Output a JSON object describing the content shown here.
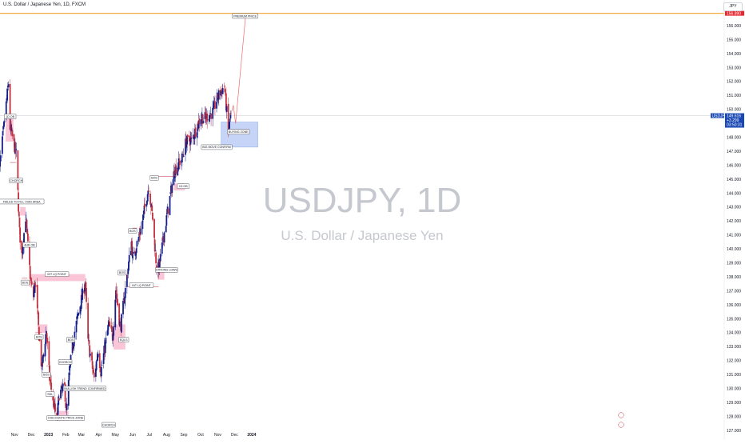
{
  "header": {
    "title": "U.S. Dollar / Japanese Yen, 1D, FXCM",
    "currency": "JPY"
  },
  "watermark": {
    "symbol": "USDJPY, 1D",
    "description": "U.S. Dollar / Japanese Yen"
  },
  "price_tag": {
    "symbol": "USDJPY",
    "price": "149.616",
    "change": "+3.299",
    "countdown": "03:50:31"
  },
  "premium_price_tag": "156.890",
  "colors": {
    "up": "#131e8a",
    "down": "#c2313f",
    "zone": "#f8bbd0",
    "buy_zone": "#c6d4f8",
    "level_line": "#f0a12b",
    "projection": "#ef6c6c",
    "price_tag_bg": "#1948b4",
    "premium_tag_bg": "#e8272f"
  },
  "chart_data": {
    "type": "candlestick",
    "title": "U.S. Dollar / Japanese Yen, 1D, FXCM",
    "symbol": "USDJPY",
    "timeframe": "1D",
    "source": "FXCM",
    "x_labels": [
      "Nov",
      "Dec",
      "2023",
      "Feb",
      "Mar",
      "Apr",
      "May",
      "Jun",
      "Jul",
      "Aug",
      "Sep",
      "Oct",
      "Nov",
      "Dec",
      "2024"
    ],
    "y_ticks": [
      "157.000",
      "156.000",
      "155.000",
      "154.000",
      "153.000",
      "152.000",
      "151.000",
      "150.000",
      "149.000",
      "148.000",
      "147.000",
      "146.000",
      "145.000",
      "144.000",
      "143.000",
      "142.000",
      "141.000",
      "140.000",
      "139.000",
      "138.000",
      "137.000",
      "136.000",
      "135.000",
      "134.000",
      "133.000",
      "132.000",
      "131.000",
      "130.000",
      "129.000",
      "128.000",
      "127.000"
    ],
    "ylim": [
      126.6,
      157.5
    ],
    "grid": false,
    "price_path": {
      "start_date": "2022-10-03",
      "waypoints": [
        {
          "date": "2022-10-03",
          "price": 145.0
        },
        {
          "date": "2022-10-21",
          "price": 151.9
        },
        {
          "date": "2022-10-24",
          "price": 148.7
        },
        {
          "date": "2022-11-04",
          "price": 146.8
        },
        {
          "date": "2022-11-10",
          "price": 141.2
        },
        {
          "date": "2022-11-14",
          "price": 139.6
        },
        {
          "date": "2022-11-21",
          "price": 142.3
        },
        {
          "date": "2022-11-30",
          "price": 137.6
        },
        {
          "date": "2022-12-05",
          "price": 136.6
        },
        {
          "date": "2022-12-08",
          "price": 137.7
        },
        {
          "date": "2022-12-15",
          "price": 133.8
        },
        {
          "date": "2022-12-20",
          "price": 131.4
        },
        {
          "date": "2022-12-28",
          "price": 134.2
        },
        {
          "date": "2023-01-03",
          "price": 130.7
        },
        {
          "date": "2023-01-16",
          "price": 127.6
        },
        {
          "date": "2023-01-20",
          "price": 129.6
        },
        {
          "date": "2023-01-30",
          "price": 130.1
        },
        {
          "date": "2023-02-02",
          "price": 128.2
        },
        {
          "date": "2023-02-08",
          "price": 131.4
        },
        {
          "date": "2023-02-17",
          "price": 134.1
        },
        {
          "date": "2023-02-28",
          "price": 136.2
        },
        {
          "date": "2023-03-08",
          "price": 137.6
        },
        {
          "date": "2023-03-13",
          "price": 133.4
        },
        {
          "date": "2023-03-24",
          "price": 130.7
        },
        {
          "date": "2023-03-31",
          "price": 132.8
        },
        {
          "date": "2023-04-05",
          "price": 131.2
        },
        {
          "date": "2023-04-19",
          "price": 134.6
        },
        {
          "date": "2023-04-26",
          "price": 133.7
        },
        {
          "date": "2023-05-02",
          "price": 137.1
        },
        {
          "date": "2023-05-10",
          "price": 134.3
        },
        {
          "date": "2023-05-30",
          "price": 140.5
        },
        {
          "date": "2023-06-01",
          "price": 139.3
        },
        {
          "date": "2023-06-16",
          "price": 141.4
        },
        {
          "date": "2023-06-30",
          "price": 144.5
        },
        {
          "date": "2023-07-07",
          "price": 142.2
        },
        {
          "date": "2023-07-14",
          "price": 138.7
        },
        {
          "date": "2023-07-18",
          "price": 138.6
        },
        {
          "date": "2023-07-28",
          "price": 141.2
        },
        {
          "date": "2023-08-15",
          "price": 145.6
        },
        {
          "date": "2023-08-29",
          "price": 146.5
        },
        {
          "date": "2023-09-05",
          "price": 147.7
        },
        {
          "date": "2023-09-15",
          "price": 147.8
        },
        {
          "date": "2023-10-03",
          "price": 149.6
        },
        {
          "date": "2023-10-06",
          "price": 149.3
        },
        {
          "date": "2023-10-23",
          "price": 149.8
        },
        {
          "date": "2023-11-01",
          "price": 150.9
        },
        {
          "date": "2023-11-13",
          "price": 151.7
        },
        {
          "date": "2023-11-20",
          "price": 148.4
        },
        {
          "date": "2023-11-22",
          "price": 148.9
        },
        {
          "date": "2023-11-24",
          "price": 149.6
        }
      ]
    },
    "annotations": [
      {
        "label": "1D OB",
        "date": "2022-10-24",
        "price": 149.5
      },
      {
        "label": "CHORCH",
        "date": "2022-11-04",
        "price": 144.9
      },
      {
        "label": "FAILED TO FILL VOID AREA",
        "date": "2022-11-14",
        "price": 143.4
      },
      {
        "label": "4HR OB",
        "date": "2022-11-28",
        "price": 140.3
      },
      {
        "label": "BOS",
        "date": "2022-11-20",
        "price": 137.6
      },
      {
        "label": "INT LQ POINT",
        "date": "2023-01-16",
        "price": 138.2
      },
      {
        "label": "BOS",
        "date": "2022-12-15",
        "price": 133.7
      },
      {
        "label": "BOS",
        "date": "2022-12-28",
        "price": 131.0
      },
      {
        "label": "SDL",
        "date": "2023-01-04",
        "price": 129.6
      },
      {
        "label": "CHORCH",
        "date": "2023-01-31",
        "price": 131.9
      },
      {
        "label": "BOS",
        "date": "2023-02-10",
        "price": 133.5
      },
      {
        "label": "DISCOUNTE PRICE ZONE",
        "date": "2023-02-01",
        "price": 127.9
      },
      {
        "label": "BULLISH TREND CONFIRMED",
        "date": "2023-03-07",
        "price": 130.0
      },
      {
        "label": "CHORCH",
        "date": "2023-04-19",
        "price": 127.4
      },
      {
        "label": "BOS",
        "date": "2023-05-13",
        "price": 138.3
      },
      {
        "label": "EQLS",
        "date": "2023-05-16",
        "price": 133.5
      },
      {
        "label": "BOS",
        "date": "2023-06-01",
        "price": 141.3
      },
      {
        "label": "INT LQ POINT",
        "date": "2023-06-17",
        "price": 137.4
      },
      {
        "label": "BOS",
        "date": "2023-07-10",
        "price": 145.1
      },
      {
        "label": "STRONG LOWS",
        "date": "2023-08-01",
        "price": 138.5
      },
      {
        "label": "1D OB",
        "date": "2023-08-31",
        "price": 144.5
      },
      {
        "label": "BIG MOVE CONFIRM",
        "date": "2023-10-30",
        "price": 147.3
      },
      {
        "label": "BUYING ZONE",
        "date": "2023-12-08",
        "price": 148.4
      },
      {
        "label": "PREMIUM PRICE",
        "date": "2023-12-20",
        "price": 156.7
      }
    ],
    "zones": [
      {
        "name": "1D OB",
        "from": "2022-10-16",
        "to": "2022-10-30",
        "low": 147.7,
        "high": 149.4
      },
      {
        "name": "FAILED TO FILL VOID AREA",
        "from": "2022-11-11",
        "to": "2022-11-21",
        "low": 142.4,
        "high": 143.0
      },
      {
        "name": "INT LQ POINT",
        "from": "2022-11-30",
        "to": "2023-03-08",
        "low": 137.7,
        "high": 138.2
      },
      {
        "name": "BOS",
        "from": "2022-12-12",
        "to": "2022-12-30",
        "low": 134.0,
        "high": 134.6
      },
      {
        "name": "DISCOUNTE PRICE ZONE",
        "from": "2023-01-16",
        "to": "2023-02-06",
        "low": 127.7,
        "high": 128.4
      },
      {
        "name": "EQLS",
        "from": "2023-04-28",
        "to": "2023-05-19",
        "low": 132.8,
        "high": 134.6
      },
      {
        "name": "STRONG LOWS",
        "from": "2023-07-16",
        "to": "2023-07-28",
        "low": 137.8,
        "high": 138.6
      },
      {
        "name": "1D OB",
        "from": "2023-08-14",
        "to": "2023-09-03",
        "low": 144.2,
        "high": 144.7
      }
    ],
    "buying_zone": {
      "from": "2023-11-07",
      "to": "2024-01-12",
      "low": 147.3,
      "high": 149.1
    },
    "premium_price_level": 156.89,
    "current_price": 149.616,
    "projection": [
      {
        "date": "2023-11-24",
        "price": 149.6
      },
      {
        "date": "2023-11-29",
        "price": 150.3
      },
      {
        "date": "2023-12-03",
        "price": 149.0
      },
      {
        "date": "2023-12-21",
        "price": 156.7
      }
    ]
  }
}
